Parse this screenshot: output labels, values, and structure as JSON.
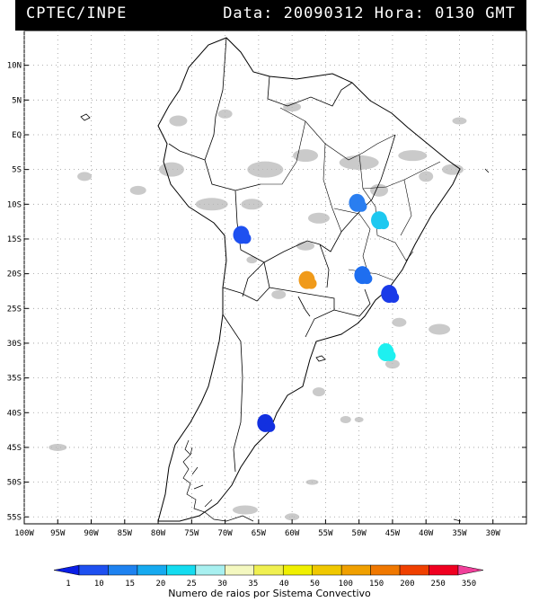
{
  "header": {
    "source": "CPTEC/INPE",
    "datetime": "Data: 20090312 Hora: 0130 GMT"
  },
  "map": {
    "lat_labels": [
      "10N",
      "5N",
      "EQ",
      "5S",
      "10S",
      "15S",
      "20S",
      "25S",
      "30S",
      "35S",
      "40S",
      "45S",
      "50S",
      "55S"
    ],
    "lon_labels": [
      "100W",
      "95W",
      "90W",
      "85W",
      "80W",
      "75W",
      "70W",
      "65W",
      "60W",
      "55W",
      "50W",
      "45W",
      "40W",
      "35W",
      "30W"
    ],
    "lat_values": [
      10,
      5,
      0,
      -5,
      -10,
      -15,
      -20,
      -25,
      -30,
      -35,
      -40,
      -45,
      -50,
      -55
    ],
    "lon_values": [
      -100,
      -95,
      -90,
      -85,
      -80,
      -75,
      -70,
      -65,
      -60,
      -55,
      -50,
      -45,
      -40,
      -35,
      -30
    ],
    "lat_range": [
      -56,
      15
    ],
    "lon_range": [
      -100,
      -25
    ],
    "grid": true,
    "colors": {
      "land_outline": "#000000",
      "cloud": "#b8b8b8",
      "grid": "#999999"
    },
    "lightning_cells": [
      {
        "lon": -50.3,
        "lat": -9.8,
        "color": "#2a7ef0"
      },
      {
        "lon": -47.0,
        "lat": -12.3,
        "color": "#1ec8f0"
      },
      {
        "lon": -67.6,
        "lat": -14.4,
        "color": "#1e50f0"
      },
      {
        "lon": -49.5,
        "lat": -20.2,
        "color": "#1e6ef0"
      },
      {
        "lon": -45.5,
        "lat": -22.9,
        "color": "#1a3ae8"
      },
      {
        "lon": -57.8,
        "lat": -20.9,
        "color": "#f09a1a"
      },
      {
        "lon": -46.0,
        "lat": -31.3,
        "color": "#1ef0f0"
      },
      {
        "lon": -64.0,
        "lat": -41.5,
        "color": "#1230e0"
      }
    ]
  },
  "colorbar": {
    "ticks": [
      "1",
      "10",
      "15",
      "20",
      "25",
      "30",
      "35",
      "40",
      "50",
      "100",
      "150",
      "200",
      "250",
      "350"
    ],
    "colors": [
      "#0a1ee6",
      "#1e50f0",
      "#1e82f0",
      "#16aaf0",
      "#14dcf0",
      "#a8f0f0",
      "#f4f8c0",
      "#f0f050",
      "#f0f000",
      "#f0c800",
      "#f0a000",
      "#f07800",
      "#f04000",
      "#f00020",
      "#f0409a"
    ],
    "title": "Numero de raios por Sistema Convectivo"
  }
}
